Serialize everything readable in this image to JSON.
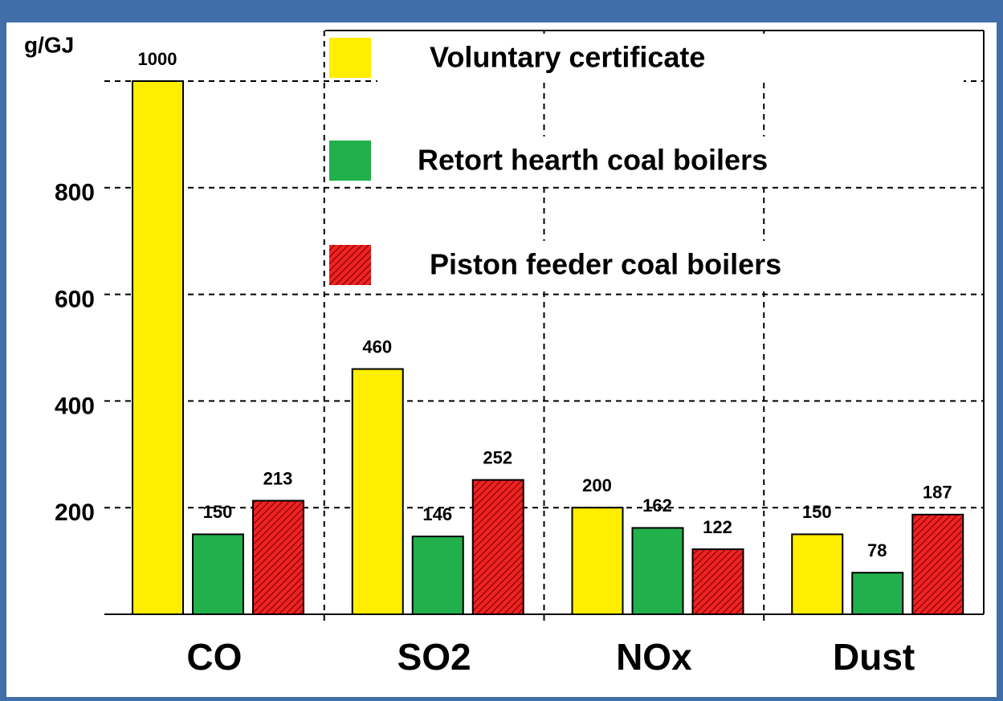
{
  "chart_data": {
    "type": "bar",
    "y_label": "g/GJ",
    "categories": [
      "CO",
      "SO2",
      "NOx",
      "Dust"
    ],
    "series": [
      {
        "name": "Voluntary certificate",
        "color": "#ffee00",
        "values": [
          1000,
          460,
          200,
          150
        ]
      },
      {
        "name": "Retort hearth coal boilers",
        "color": "#22b04c",
        "values": [
          150,
          146,
          162,
          78
        ]
      },
      {
        "name": "Piston feeder coal boilers",
        "color": "#ee2222",
        "values": [
          213,
          252,
          122,
          187
        ]
      }
    ],
    "ylim": [
      0,
      1000
    ],
    "yticks": [
      200,
      400,
      600,
      800
    ],
    "grid": true,
    "legend": "top-right"
  }
}
